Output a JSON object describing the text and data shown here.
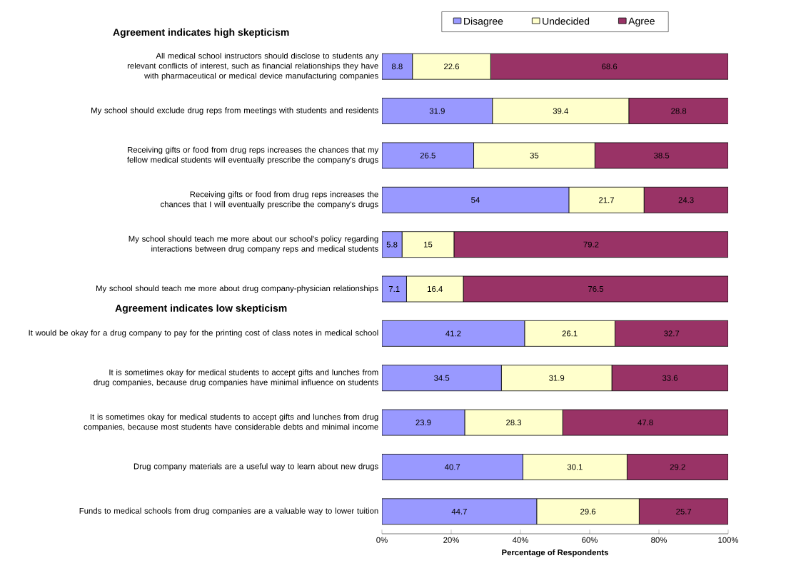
{
  "chart_data": {
    "type": "bar",
    "orientation": "horizontal",
    "stacked": true,
    "data_labels": true,
    "legend": "top",
    "grid": false,
    "categories": [
      "All medical school instructors should disclose to students any relevant conflicts of interest, such as financial relationships they have with pharmaceutical or medical device manufacturing companies",
      "My school should exclude drug reps from meetings with students and residents",
      "Receiving gifts or food from drug reps increases the chances that my fellow medical students will eventually prescribe the company's drugs",
      "Receiving gifts or food from drug reps increases the chances that I will eventually prescribe the company's drugs",
      "My school should teach me more about our school's policy regarding interactions between drug company reps and medical students",
      "My school should teach me more about drug company-physician relationships",
      "It would be okay for a drug company to pay for the printing cost of class notes in medical school",
      "It is sometimes okay for medical students to accept gifts and lunches from drug companies, because drug companies have minimal influence on students",
      "It is sometimes okay for medical students to accept gifts and lunches from drug companies, because most students have considerable debts and minimal income",
      "Drug company materials are a useful way to learn about new drugs",
      "Funds to medical schools from drug companies are a valuable way to lower tuition"
    ],
    "series": [
      {
        "name": "Disagree",
        "color": "#9999ff",
        "values": [
          8.8,
          31.9,
          26.5,
          54,
          5.8,
          7.1,
          41.2,
          34.5,
          23.9,
          40.7,
          44.7
        ]
      },
      {
        "name": "Undecided",
        "color": "#ffffcc",
        "values": [
          22.6,
          39.4,
          35,
          21.7,
          15,
          16.4,
          26.1,
          31.9,
          28.3,
          30.1,
          29.6
        ]
      },
      {
        "name": "Agree",
        "color": "#993366",
        "values": [
          68.6,
          28.8,
          38.5,
          24.3,
          79.2,
          76.5,
          32.7,
          33.6,
          47.8,
          29.2,
          25.7
        ]
      }
    ],
    "xlim": [
      0,
      100
    ],
    "xticks": [
      {
        "value": 0,
        "label": "0%"
      },
      {
        "value": 20,
        "label": "20%"
      },
      {
        "value": 40,
        "label": "40%"
      },
      {
        "value": 60,
        "label": "60%"
      },
      {
        "value": 80,
        "label": "80%"
      },
      {
        "value": 100,
        "label": "100%"
      }
    ],
    "xlabel": "Percentage of Respondents",
    "annotations": [
      "Agreement indicates high skepticism",
      "Agreement indicates low skepticism"
    ]
  }
}
